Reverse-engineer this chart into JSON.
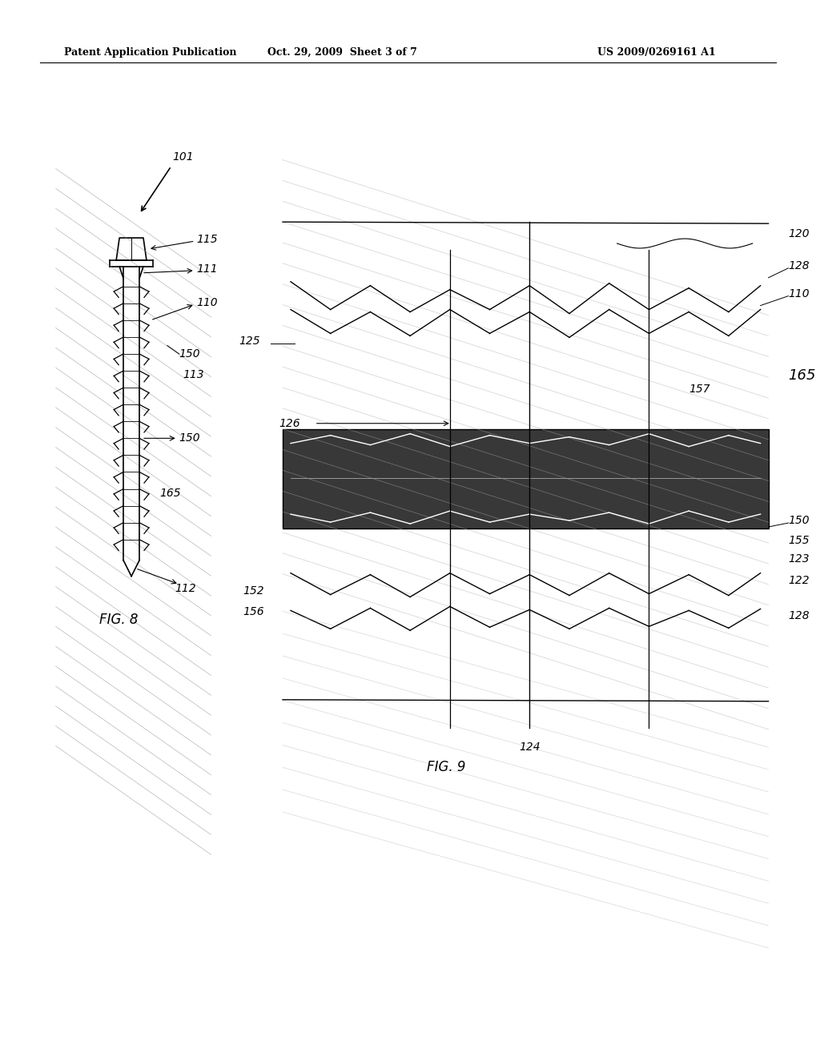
{
  "bg_color": "#ffffff",
  "header_left": "Patent Application Publication",
  "header_center": "Oct. 29, 2009  Sheet 3 of 7",
  "header_right": "US 2009/0269161 A1",
  "fig8_label": "FIG. 8",
  "fig9_label": "FIG. 9",
  "fig_width": 10.24,
  "fig_height": 13.2,
  "dpi": 100
}
